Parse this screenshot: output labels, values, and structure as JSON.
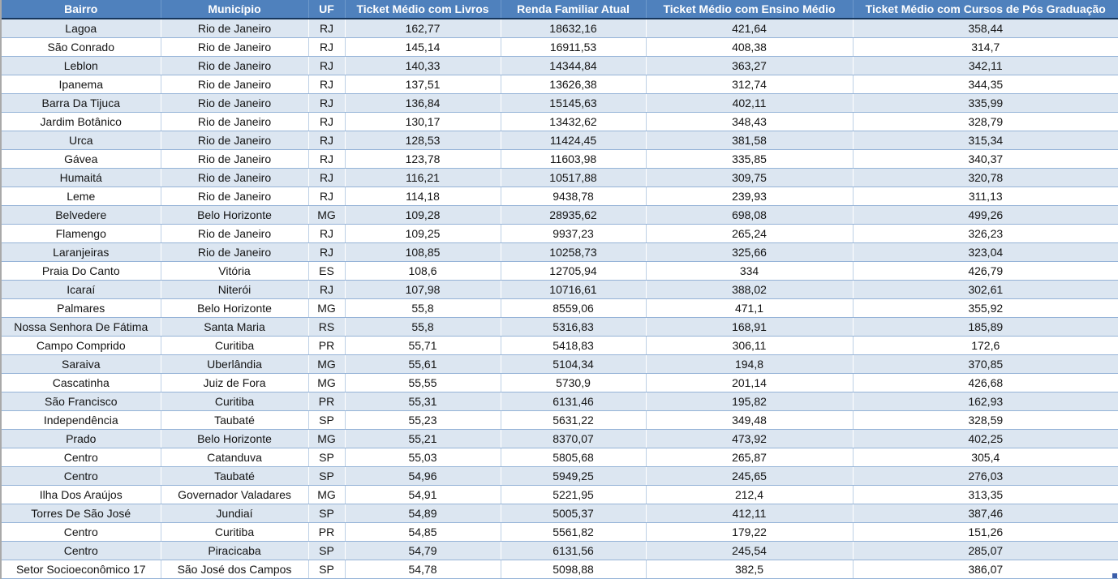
{
  "table": {
    "columns": [
      "Bairro",
      "Município",
      "UF",
      "Ticket Médio com Livros",
      "Renda Familiar Atual",
      "Ticket Médio com Ensino Médio",
      "Ticket Médio com Cursos de Pós Graduação"
    ],
    "rows": [
      [
        "Lagoa",
        "Rio de Janeiro",
        "RJ",
        "162,77",
        "18632,16",
        "421,64",
        "358,44"
      ],
      [
        "São Conrado",
        "Rio de Janeiro",
        "RJ",
        "145,14",
        "16911,53",
        "408,38",
        "314,7"
      ],
      [
        "Leblon",
        "Rio de Janeiro",
        "RJ",
        "140,33",
        "14344,84",
        "363,27",
        "342,11"
      ],
      [
        "Ipanema",
        "Rio de Janeiro",
        "RJ",
        "137,51",
        "13626,38",
        "312,74",
        "344,35"
      ],
      [
        "Barra Da Tijuca",
        "Rio de Janeiro",
        "RJ",
        "136,84",
        "15145,63",
        "402,11",
        "335,99"
      ],
      [
        "Jardim Botânico",
        "Rio de Janeiro",
        "RJ",
        "130,17",
        "13432,62",
        "348,43",
        "328,79"
      ],
      [
        "Urca",
        "Rio de Janeiro",
        "RJ",
        "128,53",
        "11424,45",
        "381,58",
        "315,34"
      ],
      [
        "Gávea",
        "Rio de Janeiro",
        "RJ",
        "123,78",
        "11603,98",
        "335,85",
        "340,37"
      ],
      [
        "Humaitá",
        "Rio de Janeiro",
        "RJ",
        "116,21",
        "10517,88",
        "309,75",
        "320,78"
      ],
      [
        "Leme",
        "Rio de Janeiro",
        "RJ",
        "114,18",
        "9438,78",
        "239,93",
        "311,13"
      ],
      [
        "Belvedere",
        "Belo Horizonte",
        "MG",
        "109,28",
        "28935,62",
        "698,08",
        "499,26"
      ],
      [
        "Flamengo",
        "Rio de Janeiro",
        "RJ",
        "109,25",
        "9937,23",
        "265,24",
        "326,23"
      ],
      [
        "Laranjeiras",
        "Rio de Janeiro",
        "RJ",
        "108,85",
        "10258,73",
        "325,66",
        "323,04"
      ],
      [
        "Praia Do Canto",
        "Vitória",
        "ES",
        "108,6",
        "12705,94",
        "334",
        "426,79"
      ],
      [
        "Icaraí",
        "Niterói",
        "RJ",
        "107,98",
        "10716,61",
        "388,02",
        "302,61"
      ],
      [
        "Palmares",
        "Belo Horizonte",
        "MG",
        "55,8",
        "8559,06",
        "471,1",
        "355,92"
      ],
      [
        "Nossa Senhora De Fátima",
        "Santa Maria",
        "RS",
        "55,8",
        "5316,83",
        "168,91",
        "185,89"
      ],
      [
        "Campo Comprido",
        "Curitiba",
        "PR",
        "55,71",
        "5418,83",
        "306,11",
        "172,6"
      ],
      [
        "Saraiva",
        "Uberlândia",
        "MG",
        "55,61",
        "5104,34",
        "194,8",
        "370,85"
      ],
      [
        "Cascatinha",
        "Juiz de Fora",
        "MG",
        "55,55",
        "5730,9",
        "201,14",
        "426,68"
      ],
      [
        "São Francisco",
        "Curitiba",
        "PR",
        "55,31",
        "6131,46",
        "195,82",
        "162,93"
      ],
      [
        "Independência",
        "Taubaté",
        "SP",
        "55,23",
        "5631,22",
        "349,48",
        "328,59"
      ],
      [
        "Prado",
        "Belo Horizonte",
        "MG",
        "55,21",
        "8370,07",
        "473,92",
        "402,25"
      ],
      [
        "Centro",
        "Catanduva",
        "SP",
        "55,03",
        "5805,68",
        "265,87",
        "305,4"
      ],
      [
        "Centro",
        "Taubaté",
        "SP",
        "54,96",
        "5949,25",
        "245,65",
        "276,03"
      ],
      [
        "Ilha Dos Araújos",
        "Governador Valadares",
        "MG",
        "54,91",
        "5221,95",
        "212,4",
        "313,35"
      ],
      [
        "Torres De São José",
        "Jundiaí",
        "SP",
        "54,89",
        "5005,37",
        "412,11",
        "387,46"
      ],
      [
        "Centro",
        "Curitiba",
        "PR",
        "54,85",
        "5561,82",
        "179,22",
        "151,26"
      ],
      [
        "Centro",
        "Piracicaba",
        "SP",
        "54,79",
        "6131,56",
        "245,54",
        "285,07"
      ],
      [
        "Setor Socioeconômico 17",
        "São José dos Campos",
        "SP",
        "54,78",
        "5098,88",
        "382,5",
        "386,07"
      ]
    ]
  },
  "colors": {
    "header_bg": "#4f81bd",
    "header_text": "#ffffff",
    "header_bottom_border": "#17375d",
    "banded_row_bg": "#dce6f1",
    "plain_row_bg": "#ffffff",
    "row_border": "#95b3d7",
    "resize_handle": "#3b5ea9"
  }
}
